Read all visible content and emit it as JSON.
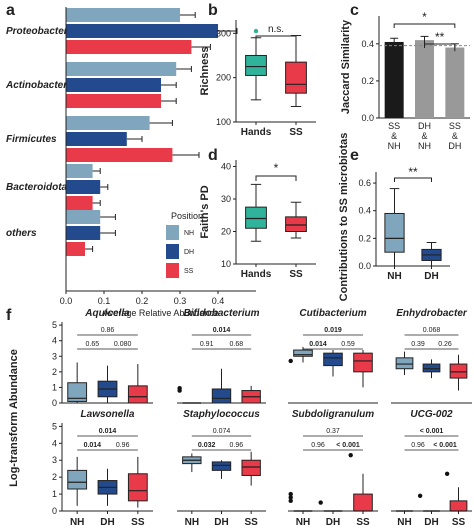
{
  "colors": {
    "NH": "#7fa6bd",
    "DH": "#234a8c",
    "SS": "#e83a48",
    "teal": "#2fb39b",
    "black": "#1a1a1a",
    "grey": "#999999"
  },
  "panel_labels": [
    "a",
    "b",
    "c",
    "d",
    "e",
    "f"
  ],
  "chart_data": [
    {
      "id": "a",
      "type": "bar",
      "orientation": "horizontal",
      "categories": [
        "Proteobacteria",
        "Actinobacteriota",
        "Firmicutes",
        "Bacteroidota",
        "others"
      ],
      "series": [
        {
          "name": "NH",
          "values": [
            0.3,
            0.29,
            0.22,
            0.07,
            0.09
          ],
          "errors": [
            0.04,
            0.04,
            0.06,
            0.02,
            0.04
          ]
        },
        {
          "name": "DH",
          "values": [
            0.4,
            0.25,
            0.16,
            0.09,
            0.09
          ],
          "errors": [
            0.05,
            0.04,
            0.04,
            0.02,
            0.04
          ]
        },
        {
          "name": "SS",
          "values": [
            0.33,
            0.25,
            0.28,
            0.07,
            0.05
          ],
          "errors": [
            0.05,
            0.04,
            0.07,
            0.02,
            0.02
          ]
        }
      ],
      "xlabel": "Average Relative Abundance",
      "xticks": [
        "0.0",
        "0.1",
        "0.2",
        "0.3",
        "0.4"
      ],
      "xlim": [
        0,
        0.5
      ],
      "legend_title": "Position",
      "legend_position": "bottom-right"
    },
    {
      "id": "b",
      "type": "box",
      "categories": [
        "Hands",
        "SS"
      ],
      "boxes": [
        {
          "min": 150,
          "q1": 205,
          "median": 225,
          "q3": 250,
          "max": 290,
          "outliers": [
            305
          ]
        },
        {
          "min": 135,
          "q1": 165,
          "median": 185,
          "q3": 235,
          "max": 295,
          "outliers": []
        }
      ],
      "ylabel": "Richness",
      "yticks": [
        "100",
        "200",
        "300"
      ],
      "ylim": [
        100,
        330
      ],
      "annotation": "n.s."
    },
    {
      "id": "c",
      "type": "box",
      "categories": [
        "Hands",
        "SS"
      ],
      "boxes": [
        {
          "min": 17,
          "q1": 21,
          "median": 24,
          "q3": 27.5,
          "max": 34.5,
          "outliers": []
        },
        {
          "min": 18,
          "q1": 20,
          "median": 22,
          "q3": 24.5,
          "max": 29,
          "outliers": []
        }
      ],
      "ylabel": "Faith's PD",
      "yticks": [
        "10",
        "20",
        "30",
        "40"
      ],
      "ylim": [
        10,
        42
      ],
      "annotation": "*"
    },
    {
      "id": "d",
      "type": "bar",
      "categories": [
        "SS & NH",
        "DH & NH",
        "SS & DH"
      ],
      "category_lines": [
        [
          "SS",
          "&",
          "NH"
        ],
        [
          "DH",
          "&",
          "NH"
        ],
        [
          "SS",
          "&",
          "DH"
        ]
      ],
      "values": [
        0.41,
        0.42,
        0.38
      ],
      "errors": [
        0.02,
        0.02,
        0.02
      ],
      "reference_line": 0.39,
      "ylabel": "Jaccard Similarity",
      "yticks": [
        "0.0",
        "0.2",
        "0.4"
      ],
      "ylim": [
        0,
        0.55
      ],
      "annotations": [
        "*",
        "**"
      ]
    },
    {
      "id": "e",
      "type": "box",
      "categories": [
        "NH",
        "DH"
      ],
      "boxes": [
        {
          "min": 0.0,
          "q1": 0.1,
          "median": 0.2,
          "q3": 0.38,
          "max": 0.56,
          "outliers": []
        },
        {
          "min": 0.0,
          "q1": 0.04,
          "median": 0.08,
          "q3": 0.12,
          "max": 0.17,
          "outliers": []
        }
      ],
      "ylabel": "Contributions to SS microbiotas",
      "yticks": [
        "0.0",
        "0.2",
        "0.4",
        "0.6"
      ],
      "ylim": [
        0,
        0.68
      ],
      "annotation": "**"
    },
    {
      "id": "f",
      "type": "box",
      "ylabel": "Log-transform Abundance",
      "yticks": [
        "0",
        "1",
        "2",
        "3",
        "4",
        "5"
      ],
      "ylim": [
        0,
        5.2
      ],
      "categories": [
        "NH",
        "DH",
        "SS"
      ],
      "taxa": [
        {
          "name": "Aquicella",
          "row": 0,
          "col": 0,
          "p_top": "0.86",
          "p_top_bold": false,
          "p_left": "0.65",
          "p_left_bold": false,
          "p_right": "0.080",
          "p_right_bold": false,
          "boxes": [
            {
              "min": 0,
              "q1": 0.1,
              "median": 0.3,
              "q3": 1.3,
              "max": 2.6,
              "outliers": []
            },
            {
              "min": 0,
              "q1": 0.4,
              "median": 0.9,
              "q3": 1.4,
              "max": 2.4,
              "outliers": []
            },
            {
              "min": 0,
              "q1": 0,
              "median": 0.4,
              "q3": 1.1,
              "max": 2.5,
              "outliers": []
            }
          ]
        },
        {
          "name": "Bifidobacterium",
          "row": 0,
          "col": 1,
          "p_top": "0.014",
          "p_top_bold": true,
          "p_left": "0.91",
          "p_left_bold": false,
          "p_right": "0.68",
          "p_right_bold": false,
          "boxes": [
            {
              "min": 0,
              "q1": 0,
              "median": 0,
              "q3": 0,
              "max": 0,
              "outliers": [
                0.8,
                0.95
              ]
            },
            {
              "min": 0,
              "q1": 0,
              "median": 0.3,
              "q3": 0.9,
              "max": 2.2,
              "outliers": []
            },
            {
              "min": 0,
              "q1": 0,
              "median": 0.4,
              "q3": 0.8,
              "max": 1.1,
              "outliers": []
            }
          ]
        },
        {
          "name": "Cutibacterium",
          "row": 0,
          "col": 2,
          "p_top": "0.019",
          "p_top_bold": true,
          "p_left": "0.014",
          "p_left_bold": true,
          "p_right": "0.59",
          "p_right_bold": false,
          "boxes": [
            {
              "min": 2.6,
              "q1": 3.0,
              "median": 3.1,
              "q3": 3.4,
              "max": 3.6,
              "outliers": [
                2.7
              ]
            },
            {
              "min": 1.7,
              "q1": 2.4,
              "median": 2.9,
              "q3": 3.2,
              "max": 3.4,
              "outliers": []
            },
            {
              "min": 1.0,
              "q1": 2.0,
              "median": 2.7,
              "q3": 3.2,
              "max": 3.4,
              "outliers": []
            }
          ]
        },
        {
          "name": "Enhydrobacter",
          "row": 0,
          "col": 3,
          "p_top": "0.068",
          "p_top_bold": false,
          "p_left": "0.39",
          "p_left_bold": false,
          "p_right": "0.26",
          "p_right_bold": false,
          "boxes": [
            {
              "min": 1.8,
              "q1": 2.2,
              "median": 2.5,
              "q3": 2.9,
              "max": 3.3,
              "outliers": []
            },
            {
              "min": 1.6,
              "q1": 2.0,
              "median": 2.2,
              "q3": 2.5,
              "max": 2.8,
              "outliers": []
            },
            {
              "min": 0.8,
              "q1": 1.6,
              "median": 2.0,
              "q3": 2.5,
              "max": 3.1,
              "outliers": []
            }
          ]
        },
        {
          "name": "Lawsonella",
          "row": 1,
          "col": 0,
          "p_top": "0.014",
          "p_top_bold": true,
          "p_left": "0.014",
          "p_left_bold": true,
          "p_right": "0.96",
          "p_right_bold": false,
          "boxes": [
            {
              "min": 0.3,
              "q1": 1.3,
              "median": 1.7,
              "q3": 2.4,
              "max": 3.2,
              "outliers": []
            },
            {
              "min": 0.3,
              "q1": 1.0,
              "median": 1.4,
              "q3": 1.8,
              "max": 2.5,
              "outliers": []
            },
            {
              "min": 0.2,
              "q1": 0.6,
              "median": 1.2,
              "q3": 2.2,
              "max": 3.2,
              "outliers": []
            }
          ]
        },
        {
          "name": "Staphylococcus",
          "row": 1,
          "col": 1,
          "p_top": "0.074",
          "p_top_bold": false,
          "p_left": "0.032",
          "p_left_bold": true,
          "p_right": "0.96",
          "p_right_bold": false,
          "boxes": [
            {
              "min": 2.3,
              "q1": 2.8,
              "median": 3.0,
              "q3": 3.2,
              "max": 3.4,
              "outliers": []
            },
            {
              "min": 1.9,
              "q1": 2.4,
              "median": 2.7,
              "q3": 2.9,
              "max": 3.0,
              "outliers": []
            },
            {
              "min": 1.5,
              "q1": 2.1,
              "median": 2.6,
              "q3": 3.0,
              "max": 3.5,
              "outliers": []
            }
          ]
        },
        {
          "name": "Subdoligranulum",
          "row": 1,
          "col": 2,
          "p_top": "0.37",
          "p_top_bold": false,
          "p_left": "0.96",
          "p_left_bold": false,
          "p_right": "< 0.001",
          "p_right_bold": true,
          "boxes": [
            {
              "min": 0,
              "q1": 0,
              "median": 0,
              "q3": 0,
              "max": 0,
              "outliers": [
                0.6,
                0.8,
                1.0
              ]
            },
            {
              "min": 0,
              "q1": 0,
              "median": 0,
              "q3": 0,
              "max": 0,
              "outliers": [
                0.5
              ]
            },
            {
              "min": 0,
              "q1": 0,
              "median": 0,
              "q3": 1.0,
              "max": 2.2,
              "outliers": [
                3.3
              ]
            }
          ]
        },
        {
          "name": "UCG-002",
          "row": 1,
          "col": 3,
          "p_top": "< 0.001",
          "p_top_bold": true,
          "p_left": "0.96",
          "p_left_bold": false,
          "p_right": "< 0.001",
          "p_right_bold": true,
          "boxes": [
            {
              "min": 0,
              "q1": 0,
              "median": 0,
              "q3": 0,
              "max": 0,
              "outliers": []
            },
            {
              "min": 0,
              "q1": 0,
              "median": 0,
              "q3": 0,
              "max": 0,
              "outliers": [
                0.9
              ]
            },
            {
              "min": 0,
              "q1": 0,
              "median": 0,
              "q3": 0.6,
              "max": 1.4,
              "outliers": [
                2.2
              ]
            }
          ]
        }
      ]
    }
  ]
}
